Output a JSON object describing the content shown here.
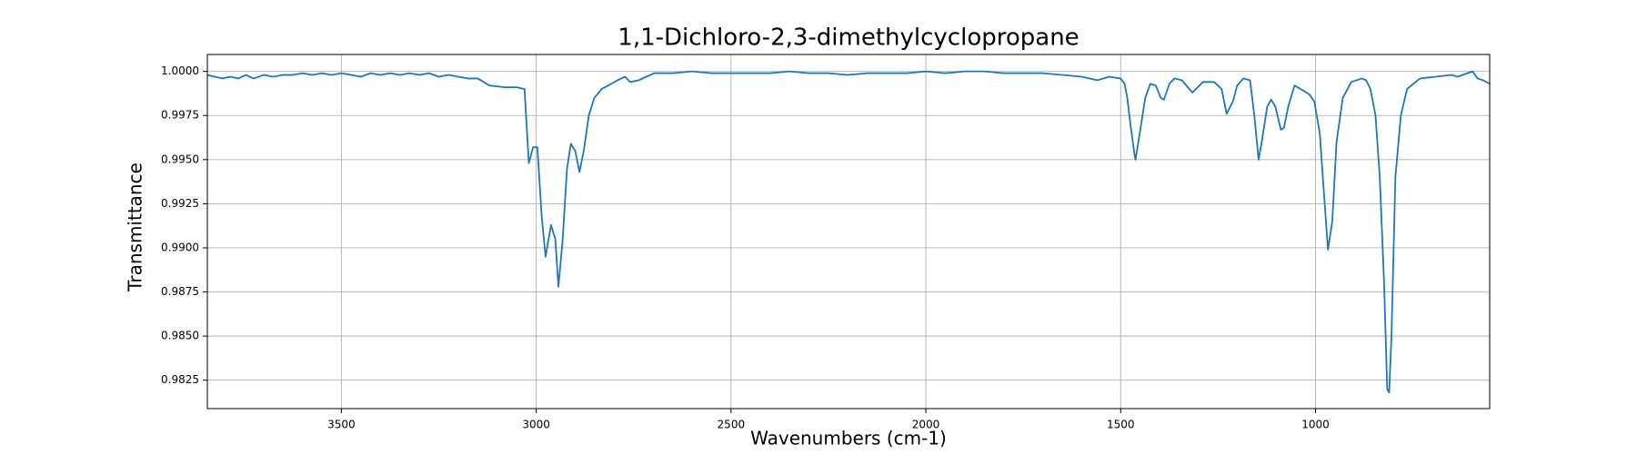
{
  "chart_data": {
    "type": "line",
    "title": "1,1-Dichloro-2,3-dimethylcyclopropane",
    "xlabel": "Wavenumbers (cm-1)",
    "ylabel": "Transmittance",
    "color": "#1f77b4",
    "grid": true,
    "xlim": [
      3844,
      553
    ],
    "ylim": [
      0.98089,
      1.00096
    ],
    "xticks": [
      3500,
      3000,
      2500,
      2000,
      1500,
      1000
    ],
    "yticks": [
      {
        "value": 1.0,
        "label": "1.0000"
      },
      0.9975,
      {
        "value": 0.995,
        "label": "0.9950"
      },
      0.9925,
      {
        "value": 0.99,
        "label": "0.9900"
      },
      0.9875,
      {
        "value": 0.985,
        "label": "0.9850"
      },
      0.9825
    ],
    "x": [
      3844,
      3825,
      3805,
      3785,
      3765,
      3745,
      3725,
      3700,
      3675,
      3650,
      3625,
      3600,
      3575,
      3550,
      3525,
      3500,
      3475,
      3450,
      3425,
      3400,
      3375,
      3350,
      3325,
      3300,
      3275,
      3250,
      3225,
      3200,
      3175,
      3150,
      3120,
      3080,
      3050,
      3030,
      3019,
      3008,
      2997,
      2986,
      2976,
      2962,
      2951,
      2943,
      2932,
      2921,
      2911,
      2900,
      2889,
      2878,
      2865,
      2851,
      2832,
      2791,
      2772,
      2759,
      2737,
      2697,
      2650,
      2600,
      2550,
      2500,
      2450,
      2400,
      2350,
      2300,
      2250,
      2200,
      2150,
      2100,
      2050,
      2000,
      1950,
      1900,
      1850,
      1800,
      1750,
      1700,
      1650,
      1600,
      1560,
      1530,
      1500,
      1490,
      1483,
      1475,
      1464,
      1462,
      1451,
      1437,
      1424,
      1410,
      1397,
      1389,
      1375,
      1362,
      1343,
      1316,
      1289,
      1260,
      1241,
      1228,
      1212,
      1201,
      1185,
      1168,
      1157,
      1146,
      1138,
      1124,
      1114,
      1103,
      1089,
      1081,
      1070,
      1054,
      1038,
      1016,
      1003,
      989,
      978,
      968,
      957,
      946,
      930,
      908,
      881,
      870,
      859,
      846,
      835,
      824,
      816,
      811,
      805,
      795,
      781,
      765,
      732,
      692,
      651,
      635,
      597,
      584,
      570,
      553
    ],
    "values": [
      0.9998,
      0.9997,
      0.9996,
      0.9997,
      0.9996,
      0.9998,
      0.9996,
      0.9998,
      0.9997,
      0.9998,
      0.9998,
      0.9999,
      0.9998,
      0.9999,
      0.9998,
      0.9999,
      0.9998,
      0.9997,
      0.9999,
      0.9998,
      0.9999,
      0.9998,
      0.9999,
      0.9998,
      0.9999,
      0.9997,
      0.9998,
      0.9997,
      0.9996,
      0.9996,
      0.9992,
      0.9991,
      0.9991,
      0.999,
      0.9948,
      0.9957,
      0.9957,
      0.9918,
      0.9895,
      0.9913,
      0.9905,
      0.9878,
      0.9905,
      0.9945,
      0.9959,
      0.9955,
      0.9943,
      0.9955,
      0.9975,
      0.9985,
      0.999,
      0.9995,
      0.9997,
      0.9994,
      0.9995,
      0.9999,
      0.9999,
      1.0,
      0.9999,
      0.9999,
      0.9999,
      0.9999,
      1.0,
      0.9999,
      0.9999,
      0.9998,
      0.9999,
      0.9999,
      0.9999,
      1.0,
      0.9999,
      1.0,
      1.0,
      0.9999,
      0.9999,
      0.9999,
      0.9998,
      0.9997,
      0.9995,
      0.9997,
      0.9996,
      0.9993,
      0.9985,
      0.997,
      0.9952,
      0.995,
      0.9965,
      0.9985,
      0.9993,
      0.9992,
      0.9985,
      0.9984,
      0.9993,
      0.9996,
      0.9995,
      0.9988,
      0.9994,
      0.9994,
      0.999,
      0.9976,
      0.9983,
      0.9992,
      0.9996,
      0.9995,
      0.9975,
      0.995,
      0.996,
      0.998,
      0.9984,
      0.998,
      0.9967,
      0.9968,
      0.998,
      0.9992,
      0.999,
      0.9987,
      0.9983,
      0.9965,
      0.993,
      0.9899,
      0.9915,
      0.996,
      0.9985,
      0.9994,
      0.9996,
      0.9995,
      0.999,
      0.9975,
      0.994,
      0.988,
      0.982,
      0.9818,
      0.985,
      0.994,
      0.9975,
      0.999,
      0.9996,
      0.9997,
      0.9998,
      0.9997,
      1.0,
      0.9996,
      0.9995,
      0.9993
    ]
  }
}
